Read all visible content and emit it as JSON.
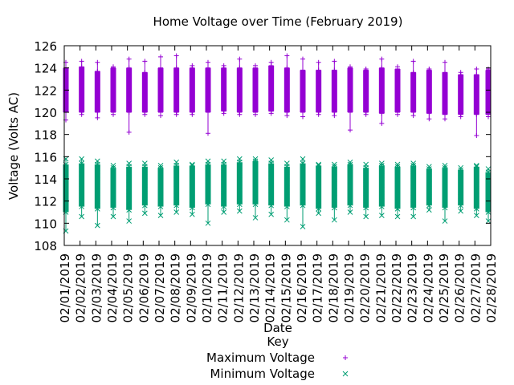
{
  "chart_data": {
    "type": "scatter",
    "title": "Home Voltage over Time (February 2019)",
    "xlabel": "Date",
    "ylabel": "Voltage (Volts AC)",
    "ylim": [
      108,
      126
    ],
    "yticks": [
      108,
      110,
      112,
      114,
      116,
      118,
      120,
      122,
      124,
      126
    ],
    "grid": false,
    "legend_title": "Key",
    "legend_position": "bottom-center",
    "categories": [
      "02/01/2019",
      "02/02/2019",
      "02/03/2019",
      "02/04/2019",
      "02/05/2019",
      "02/06/2019",
      "02/07/2019",
      "02/08/2019",
      "02/09/2019",
      "02/10/2019",
      "02/11/2019",
      "02/12/2019",
      "02/13/2019",
      "02/14/2019",
      "02/15/2019",
      "02/16/2019",
      "02/17/2019",
      "02/18/2019",
      "02/19/2019",
      "02/20/2019",
      "02/21/2019",
      "02/22/2019",
      "02/23/2019",
      "02/24/2019",
      "02/25/2019",
      "02/26/2019",
      "02/27/2019",
      "02/28/2019"
    ],
    "series": [
      {
        "name": "Maximum Voltage",
        "marker": "plus",
        "color": "#9400d3",
        "band_low": [
          120.0,
          120.0,
          120.0,
          120.0,
          120.0,
          120.0,
          120.0,
          120.0,
          120.0,
          120.0,
          120.1,
          120.0,
          120.0,
          120.1,
          120.0,
          120.0,
          120.0,
          120.0,
          120.0,
          120.0,
          119.9,
          120.0,
          120.0,
          119.9,
          119.8,
          119.8,
          119.8,
          119.8
        ],
        "band_high": [
          124.0,
          124.1,
          123.7,
          124.0,
          124.0,
          123.6,
          124.0,
          124.0,
          124.0,
          124.0,
          124.0,
          124.0,
          124.0,
          124.2,
          124.0,
          123.8,
          123.8,
          123.8,
          124.0,
          123.8,
          124.0,
          123.9,
          123.6,
          123.8,
          123.6,
          123.4,
          123.4,
          123.8
        ],
        "min": [
          119.3,
          119.8,
          119.5,
          119.8,
          118.2,
          119.8,
          119.7,
          119.8,
          119.8,
          118.1,
          119.9,
          119.8,
          119.8,
          119.9,
          119.7,
          119.6,
          119.8,
          119.7,
          118.4,
          119.8,
          119.0,
          119.8,
          119.7,
          119.4,
          119.4,
          119.6,
          117.9,
          119.6
        ],
        "max": [
          124.5,
          124.6,
          124.5,
          124.1,
          124.8,
          124.6,
          125.0,
          125.1,
          124.2,
          124.5,
          124.2,
          124.8,
          124.2,
          124.5,
          125.1,
          124.8,
          124.5,
          124.6,
          124.1,
          123.9,
          124.8,
          124.1,
          124.6,
          123.9,
          124.5,
          123.6,
          123.9,
          123.9
        ]
      },
      {
        "name": "Minimum Voltage",
        "marker": "cross",
        "color": "#009e73",
        "band_low": [
          111.0,
          111.5,
          111.3,
          111.4,
          111.2,
          111.6,
          111.5,
          111.6,
          111.4,
          111.7,
          111.5,
          111.7,
          111.7,
          111.6,
          111.5,
          111.6,
          111.3,
          111.4,
          111.6,
          111.4,
          111.5,
          111.3,
          111.4,
          111.6,
          111.4,
          111.6,
          111.3,
          111.0
        ],
        "band_high": [
          115.3,
          115.4,
          115.3,
          115.0,
          115.1,
          115.1,
          115.0,
          115.2,
          115.2,
          115.3,
          115.3,
          115.5,
          115.6,
          115.4,
          115.1,
          115.4,
          115.2,
          115.1,
          115.3,
          115.0,
          115.2,
          115.1,
          115.2,
          114.9,
          115.0,
          114.8,
          115.1,
          114.6
        ],
        "min": [
          109.3,
          110.6,
          109.8,
          110.6,
          110.2,
          110.9,
          110.7,
          111.0,
          110.8,
          110.0,
          111.0,
          111.1,
          110.5,
          110.8,
          110.3,
          109.7,
          110.9,
          110.3,
          111.0,
          110.6,
          110.7,
          110.6,
          110.6,
          111.2,
          110.2,
          111.1,
          110.7,
          110.2
        ],
        "max": [
          115.8,
          115.8,
          115.6,
          115.2,
          115.4,
          115.4,
          115.2,
          115.5,
          115.3,
          115.6,
          115.6,
          115.8,
          115.8,
          115.7,
          115.4,
          115.8,
          115.3,
          115.3,
          115.5,
          115.3,
          115.4,
          115.3,
          115.4,
          115.1,
          115.2,
          115.0,
          115.2,
          114.9
        ]
      }
    ]
  }
}
